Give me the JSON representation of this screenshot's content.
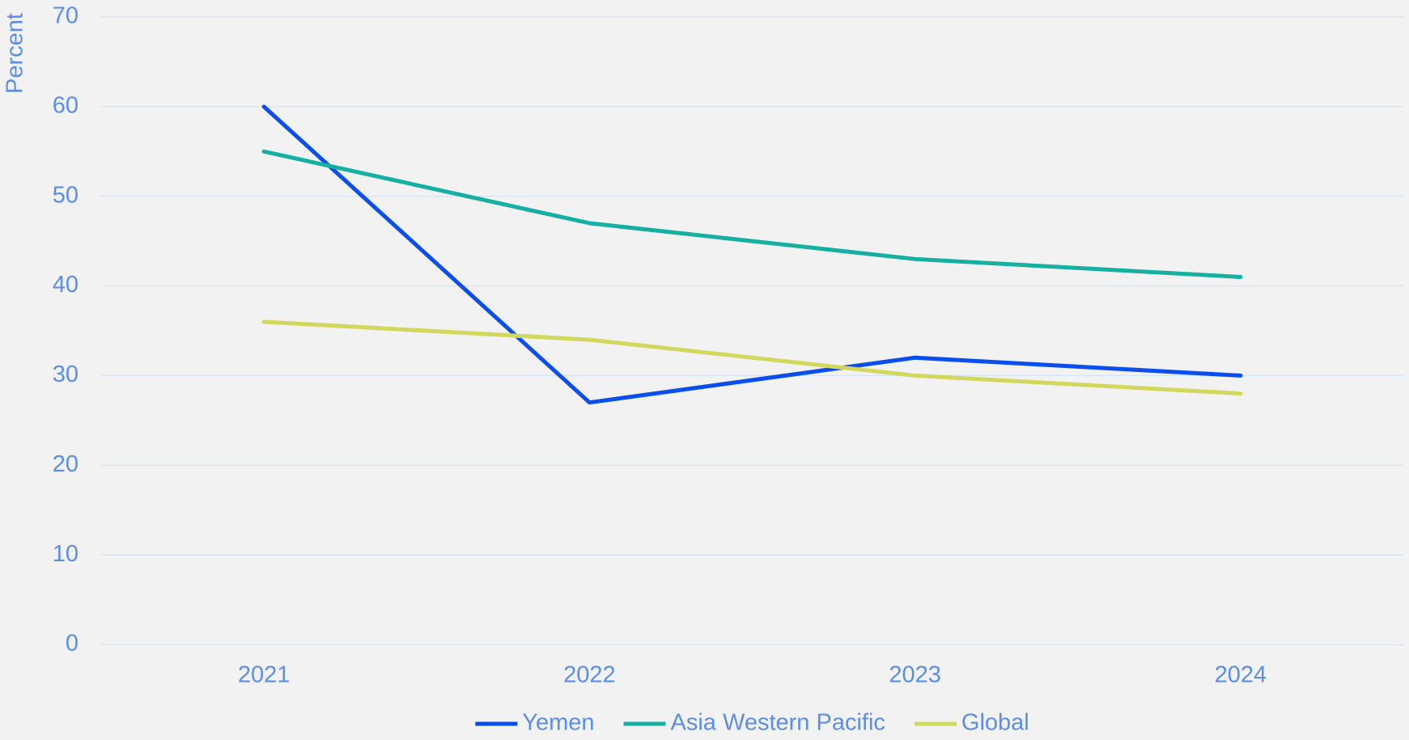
{
  "chart_data": {
    "type": "line",
    "y_label": "Percent",
    "categories": [
      "2021",
      "2022",
      "2023",
      "2024"
    ],
    "series": [
      {
        "name": "Yemen",
        "color": "#0b4ef0",
        "values": [
          60,
          27,
          32,
          30
        ]
      },
      {
        "name": "Asia Western Pacific",
        "color": "#15b0a2",
        "values": [
          55,
          47,
          43,
          41
        ]
      },
      {
        "name": "Global",
        "color": "#d2d85c",
        "values": [
          36,
          34,
          30,
          28
        ]
      }
    ],
    "ylim": [
      0,
      70
    ],
    "yticks": [
      0,
      10,
      20,
      30,
      40,
      50,
      60,
      70
    ],
    "grid": true,
    "legend": "bottom"
  }
}
